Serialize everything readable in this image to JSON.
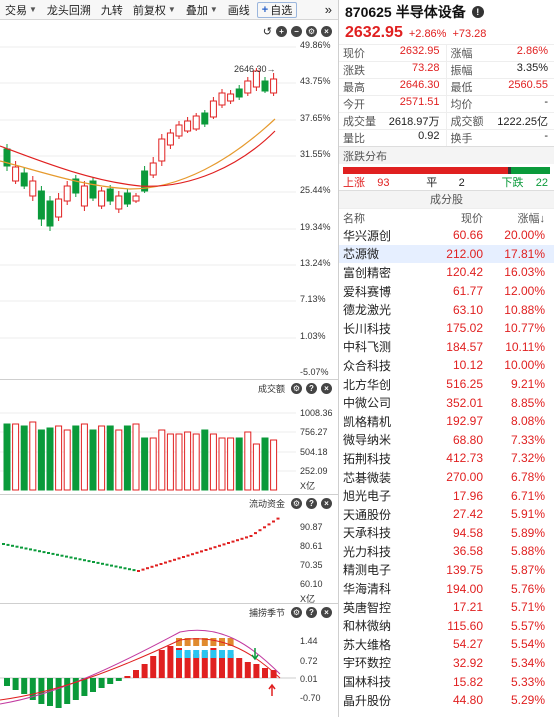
{
  "toolbar": {
    "items": [
      "交易",
      "龙头回溯",
      "九转",
      "前复权",
      "叠加",
      "画线"
    ],
    "add_label": "自选",
    "more": "»"
  },
  "kline": {
    "axis_labels": [
      "49.86%",
      "43.75%",
      "37.65%",
      "31.55%",
      "25.44%",
      "19.34%",
      "13.24%",
      "7.13%",
      "1.03%",
      "-5.07%"
    ],
    "high_marker": "2646.30",
    "colors": {
      "up": "#e02020",
      "down": "#0a9a3a",
      "ma1": "#e69a2e",
      "ma2": "#e02020"
    }
  },
  "volume": {
    "title": "成交额",
    "axis_labels": [
      "1008.36",
      "756.27",
      "504.18",
      "252.09",
      "X亿"
    ]
  },
  "flow": {
    "title": "流动资金",
    "axis_labels": [
      "90.87",
      "80.61",
      "70.35",
      "60.10",
      "X亿"
    ]
  },
  "season": {
    "title": "捕捞季节",
    "axis_labels": [
      "1.44",
      "0.72",
      "0.01",
      "-0.70"
    ]
  },
  "stock": {
    "code": "870625",
    "name": "半导体设备",
    "price": "2632.95",
    "change_pct": "+2.86%",
    "change": "+73.28"
  },
  "quote": [
    [
      {
        "label": "现价",
        "value": "2632.95",
        "color": "red"
      },
      {
        "label": "涨幅",
        "value": "2.86%",
        "color": "red"
      }
    ],
    [
      {
        "label": "涨跌",
        "value": "73.28",
        "color": "red"
      },
      {
        "label": "振幅",
        "value": "3.35%",
        "color": "dark"
      }
    ],
    [
      {
        "label": "最高",
        "value": "2646.30",
        "color": "red"
      },
      {
        "label": "最低",
        "value": "2560.55",
        "color": "red"
      }
    ],
    [
      {
        "label": "今开",
        "value": "2571.51",
        "color": "red"
      },
      {
        "label": "均价",
        "value": "-",
        "color": "dark"
      }
    ],
    [
      {
        "label": "成交量",
        "value": "2618.97万",
        "color": "dark"
      },
      {
        "label": "成交额",
        "value": "1222.25亿",
        "color": "dark"
      }
    ],
    [
      {
        "label": "量比",
        "value": "0.92",
        "color": "dark"
      },
      {
        "label": "换手",
        "value": "-",
        "color": "dark"
      }
    ]
  ],
  "distribution": {
    "title": "涨跌分布",
    "up_label": "上涨",
    "up": "93",
    "flat_label": "平",
    "flat": "2",
    "down_label": "下跌",
    "down": "22"
  },
  "constituents": {
    "title": "成分股",
    "headers": [
      "名称",
      "现价",
      "涨幅↓"
    ],
    "rows": [
      [
        "华兴源创",
        "60.66",
        "20.00%"
      ],
      [
        "芯源微",
        "212.00",
        "17.81%"
      ],
      [
        "富创精密",
        "120.42",
        "16.03%"
      ],
      [
        "爱科赛博",
        "61.77",
        "12.00%"
      ],
      [
        "德龙激光",
        "63.10",
        "10.88%"
      ],
      [
        "长川科技",
        "175.02",
        "10.77%"
      ],
      [
        "中科飞测",
        "184.57",
        "10.11%"
      ],
      [
        "众合科技",
        "10.12",
        "10.00%"
      ],
      [
        "北方华创",
        "516.25",
        "9.21%"
      ],
      [
        "中微公司",
        "352.01",
        "8.85%"
      ],
      [
        "凯格精机",
        "192.97",
        "8.08%"
      ],
      [
        "微导纳米",
        "68.80",
        "7.33%"
      ],
      [
        "拓荆科技",
        "412.73",
        "7.32%"
      ],
      [
        "芯碁微装",
        "270.00",
        "6.78%"
      ],
      [
        "旭光电子",
        "17.96",
        "6.71%"
      ],
      [
        "天通股份",
        "27.42",
        "5.91%"
      ],
      [
        "天承科技",
        "94.58",
        "5.89%"
      ],
      [
        "光力科技",
        "36.58",
        "5.88%"
      ],
      [
        "精测电子",
        "139.75",
        "5.87%"
      ],
      [
        "华海清科",
        "194.00",
        "5.76%"
      ],
      [
        "英唐智控",
        "17.21",
        "5.71%"
      ],
      [
        "和林微纳",
        "115.60",
        "5.57%"
      ],
      [
        "苏大维格",
        "54.27",
        "5.54%"
      ],
      [
        "宇环数控",
        "32.92",
        "5.34%"
      ],
      [
        "国林科技",
        "15.82",
        "5.33%"
      ],
      [
        "晶升股份",
        "44.80",
        "5.29%"
      ]
    ]
  }
}
